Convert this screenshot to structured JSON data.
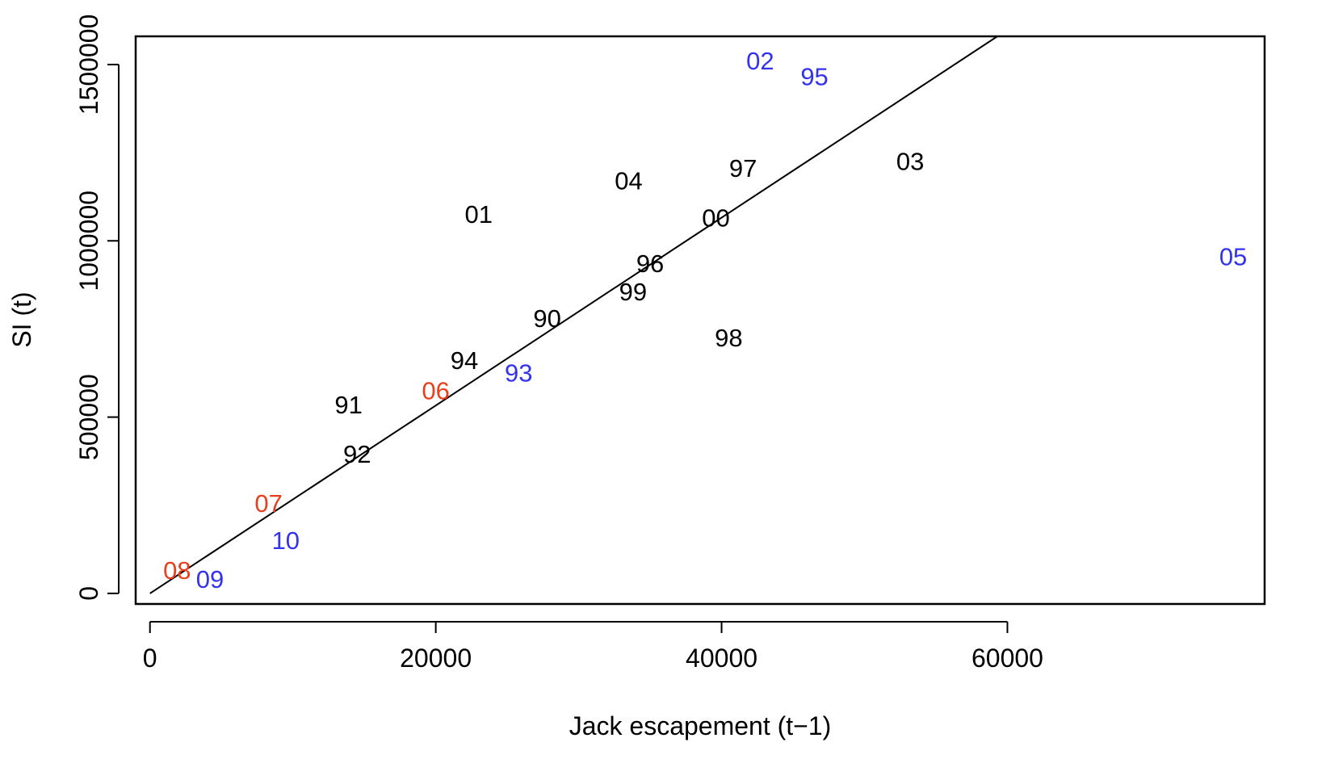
{
  "chart_data": {
    "type": "scatter",
    "title": "",
    "xlabel": "Jack escapement (t−1)",
    "ylabel": "SI (t)",
    "xlim": [
      -1000,
      78000
    ],
    "ylim": [
      -30000,
      1580000
    ],
    "x_ticks": [
      0,
      20000,
      40000,
      60000
    ],
    "x_tick_labels": [
      "0",
      "20000",
      "40000",
      "60000"
    ],
    "y_ticks": [
      0,
      500000,
      1000000,
      1500000
    ],
    "y_tick_labels": [
      "0",
      "500000",
      "1000000",
      "1500000"
    ],
    "grid": false,
    "legend": "none",
    "colors": {
      "black": "#000000",
      "blue": "#3333ee",
      "red": "#e8401c"
    },
    "points": [
      {
        "label": "90",
        "x": 27800,
        "y": 780000,
        "color": "black"
      },
      {
        "label": "91",
        "x": 13900,
        "y": 535000,
        "color": "black"
      },
      {
        "label": "92",
        "x": 14500,
        "y": 395000,
        "color": "black"
      },
      {
        "label": "93",
        "x": 25800,
        "y": 625000,
        "color": "blue"
      },
      {
        "label": "94",
        "x": 22000,
        "y": 660000,
        "color": "black"
      },
      {
        "label": "95",
        "x": 46500,
        "y": 1465000,
        "color": "blue"
      },
      {
        "label": "96",
        "x": 35000,
        "y": 935000,
        "color": "black"
      },
      {
        "label": "97",
        "x": 41500,
        "y": 1205000,
        "color": "black"
      },
      {
        "label": "98",
        "x": 40500,
        "y": 725000,
        "color": "black"
      },
      {
        "label": "99",
        "x": 33800,
        "y": 855000,
        "color": "black"
      },
      {
        "label": "00",
        "x": 39600,
        "y": 1065000,
        "color": "black"
      },
      {
        "label": "01",
        "x": 23000,
        "y": 1075000,
        "color": "black"
      },
      {
        "label": "02",
        "x": 42700,
        "y": 1510000,
        "color": "blue"
      },
      {
        "label": "03",
        "x": 53200,
        "y": 1225000,
        "color": "black"
      },
      {
        "label": "04",
        "x": 33500,
        "y": 1170000,
        "color": "black"
      },
      {
        "label": "05",
        "x": 75800,
        "y": 955000,
        "color": "blue"
      },
      {
        "label": "06",
        "x": 20000,
        "y": 575000,
        "color": "red"
      },
      {
        "label": "07",
        "x": 8300,
        "y": 255000,
        "color": "red"
      },
      {
        "label": "08",
        "x": 1900,
        "y": 65000,
        "color": "red"
      },
      {
        "label": "09",
        "x": 4200,
        "y": 40000,
        "color": "blue"
      },
      {
        "label": "10",
        "x": 9500,
        "y": 150000,
        "color": "blue"
      }
    ],
    "fit_line": {
      "from": [
        0,
        0
      ],
      "to": [
        59300,
        1580000
      ]
    }
  }
}
